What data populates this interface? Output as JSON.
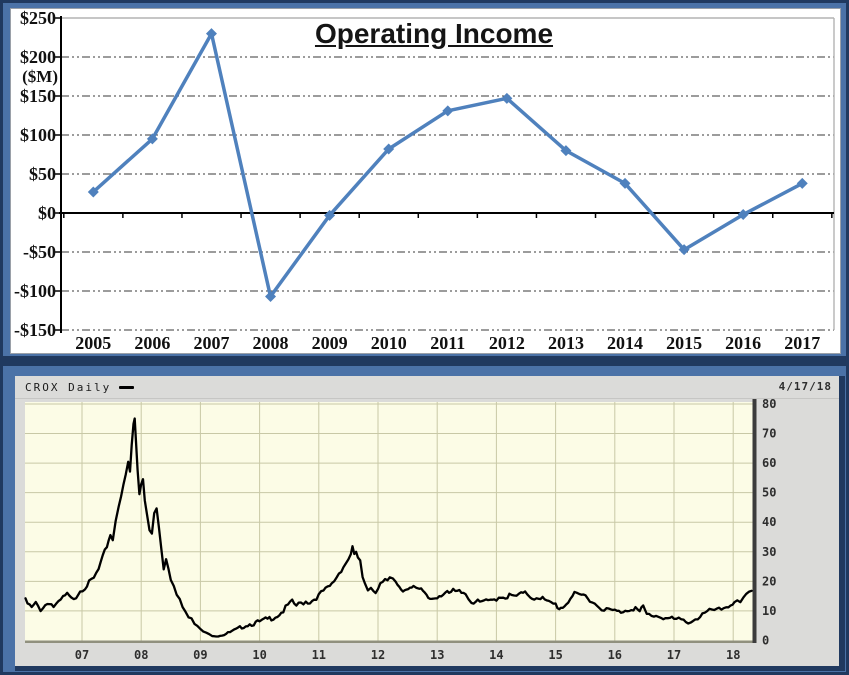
{
  "page": {
    "frame_color": "#20395f",
    "background_color": "#4b72a7"
  },
  "chart_data": [
    {
      "type": "line",
      "title": "Operating Income",
      "ylabel": "($M)",
      "categories": [
        "2005",
        "2006",
        "2007",
        "2008",
        "2009",
        "2010",
        "2011",
        "2012",
        "2013",
        "2014",
        "2015",
        "2016",
        "2017"
      ],
      "values": [
        27,
        95,
        230,
        -107,
        -3,
        82,
        131,
        147,
        80,
        38,
        -47,
        -2,
        38
      ],
      "ylim": [
        -150,
        250
      ],
      "y_tick_values": [
        250,
        200,
        150,
        100,
        50,
        0,
        -50,
        -100,
        -150
      ],
      "y_tick_labels": [
        "$250",
        "$200",
        "$150",
        "$100",
        "$50",
        "$0",
        "-$50",
        "-$100",
        "-$150"
      ],
      "grid": "dash-dot",
      "legend_position": "none",
      "line_color": "#4f81bd",
      "marker": "diamond",
      "axis_color": "#000000",
      "plot_border_color": "#b3b3b3",
      "background": "#ffffff"
    },
    {
      "type": "line",
      "header_label": "CROX Daily",
      "symbol": "CROX",
      "interval": "Daily",
      "as_of_date": "4/17/18",
      "title": "CROX Daily",
      "ylim": [
        0,
        80
      ],
      "y_tick_labels": [
        "0",
        "10",
        "20",
        "30",
        "40",
        "50",
        "60",
        "70",
        "80"
      ],
      "y_tick_values": [
        0,
        10,
        20,
        30,
        40,
        50,
        60,
        70,
        80
      ],
      "x_tick_labels": [
        "07",
        "08",
        "09",
        "10",
        "11",
        "12",
        "13",
        "14",
        "15",
        "16",
        "17",
        "18"
      ],
      "x_tick_years": [
        2007,
        2008,
        2009,
        2010,
        2011,
        2012,
        2013,
        2014,
        2015,
        2016,
        2017,
        2018
      ],
      "grid": "on",
      "legend_position": "top-left",
      "line_color": "#000000",
      "plot_bg": "#fcfce6",
      "grid_color": "#c8c8a6",
      "panel_bg": "#dbdbd9",
      "x": [
        2006,
        2006.08,
        2006.15,
        2006.22,
        2006.3,
        2006.38,
        2006.45,
        2006.52,
        2006.6,
        2006.68,
        2006.75,
        2006.82,
        2006.9,
        2006.97,
        2007.05,
        2007.12,
        2007.2,
        2007.28,
        2007.35,
        2007.42,
        2007.48,
        2007.52,
        2007.57,
        2007.62,
        2007.66,
        2007.7,
        2007.74,
        2007.78,
        2007.81,
        2007.84,
        2007.87,
        2007.89,
        2007.91,
        2007.94,
        2007.97,
        2008,
        2008.03,
        2008.06,
        2008.1,
        2008.14,
        2008.18,
        2008.22,
        2008.26,
        2008.3,
        2008.34,
        2008.38,
        2008.42,
        2008.46,
        2008.5,
        2008.55,
        2008.6,
        2008.65,
        2008.7,
        2008.75,
        2008.8,
        2008.85,
        2008.9,
        2008.95,
        2009,
        2009.05,
        2009.1,
        2009.15,
        2009.2,
        2009.3,
        2009.4,
        2009.5,
        2009.6,
        2009.7,
        2009.8,
        2009.9,
        2010,
        2010.1,
        2010.2,
        2010.3,
        2010.4,
        2010.48,
        2010.55,
        2010.62,
        2010.7,
        2010.78,
        2010.85,
        2010.92,
        2011,
        2011.08,
        2011.15,
        2011.22,
        2011.3,
        2011.38,
        2011.45,
        2011.5,
        2011.54,
        2011.57,
        2011.6,
        2011.63,
        2011.66,
        2011.7,
        2011.74,
        2011.78,
        2011.83,
        2011.88,
        2011.92,
        2011.96,
        2012,
        2012.04,
        2012.08,
        2012.12,
        2012.16,
        2012.2,
        2012.25,
        2012.3,
        2012.36,
        2012.42,
        2012.48,
        2012.54,
        2012.6,
        2012.65,
        2012.7,
        2012.76,
        2012.82,
        2012.88,
        2012.94,
        2013,
        2013.07,
        2013.14,
        2013.2,
        2013.27,
        2013.34,
        2013.41,
        2013.48,
        2013.53,
        2013.58,
        2013.65,
        2013.72,
        2013.79,
        2013.86,
        2013.93,
        2014,
        2014.08,
        2014.15,
        2014.22,
        2014.3,
        2014.38,
        2014.45,
        2014.52,
        2014.57,
        2014.64,
        2014.71,
        2014.78,
        2014.85,
        2014.92,
        2015,
        2015.06,
        2015.12,
        2015.18,
        2015.25,
        2015.32,
        2015.4,
        2015.47,
        2015.54,
        2015.62,
        2015.7,
        2015.78,
        2015.86,
        2015.93,
        2016,
        2016.07,
        2016.14,
        2016.21,
        2016.28,
        2016.35,
        2016.42,
        2016.48,
        2016.54,
        2016.62,
        2016.7,
        2016.78,
        2016.86,
        2016.93,
        2017,
        2017.08,
        2017.16,
        2017.24,
        2017.32,
        2017.4,
        2017.48,
        2017.56,
        2017.64,
        2017.72,
        2017.8,
        2017.88,
        2017.96,
        2018.02,
        2018.07,
        2018.12,
        2018.17,
        2018.22,
        2018.27,
        2018.31
      ],
      "values": [
        13.5,
        12.5,
        11,
        12.5,
        10.5,
        12,
        13,
        11.5,
        12.5,
        14.5,
        15.5,
        14,
        15,
        17,
        18,
        19.5,
        21,
        24,
        28,
        32,
        36,
        34,
        41,
        46,
        49,
        52,
        56,
        60,
        57,
        66,
        73,
        75,
        68,
        58,
        50,
        53,
        55,
        48,
        43,
        38,
        36,
        43,
        44,
        38,
        31,
        24,
        27,
        25,
        21,
        19,
        16,
        14.5,
        12,
        10.5,
        8.5,
        7,
        5.5,
        4.5,
        3.8,
        3,
        2.4,
        2,
        1.7,
        1.5,
        2,
        2.8,
        3.6,
        4.6,
        5.4,
        5.8,
        6.2,
        7,
        7.6,
        8.4,
        10,
        12,
        13,
        11.8,
        12.6,
        13.2,
        13,
        14,
        15.2,
        16.8,
        17.6,
        19,
        21.5,
        24,
        26,
        27.5,
        29.5,
        31.5,
        28.5,
        30,
        28,
        26.5,
        21,
        18.5,
        17,
        18.2,
        17.4,
        16.6,
        17.5,
        19.8,
        20.6,
        21.2,
        20.2,
        21,
        20.4,
        19.2,
        17.6,
        16.8,
        17.4,
        18.2,
        19,
        17.8,
        17.2,
        16.4,
        14.8,
        14,
        14.4,
        15,
        15.6,
        16.2,
        15.6,
        16.8,
        16.4,
        16.8,
        16.2,
        14,
        13,
        13.2,
        12.8,
        13.4,
        13,
        13.6,
        14.2,
        15,
        14.6,
        15.2,
        14.8,
        15.4,
        15.8,
        16,
        14.8,
        14.4,
        14.8,
        14.2,
        13,
        12.6,
        12.2,
        10.8,
        11.4,
        12.4,
        14.4,
        15.6,
        15,
        15.4,
        14.6,
        13.2,
        11.8,
        11,
        10.4,
        10.2,
        10,
        9.6,
        10,
        10.4,
        10.8,
        11,
        9.6,
        11.4,
        8.8,
        8.6,
        8.4,
        8,
        7.6,
        7.4,
        7.2,
        7,
        6.6,
        6.4,
        6.8,
        7.6,
        8.8,
        9.4,
        10.4,
        10,
        10.6,
        11.4,
        12.2,
        13.2,
        13,
        12.4,
        13.8,
        15,
        16.2,
        16.8
      ]
    }
  ]
}
